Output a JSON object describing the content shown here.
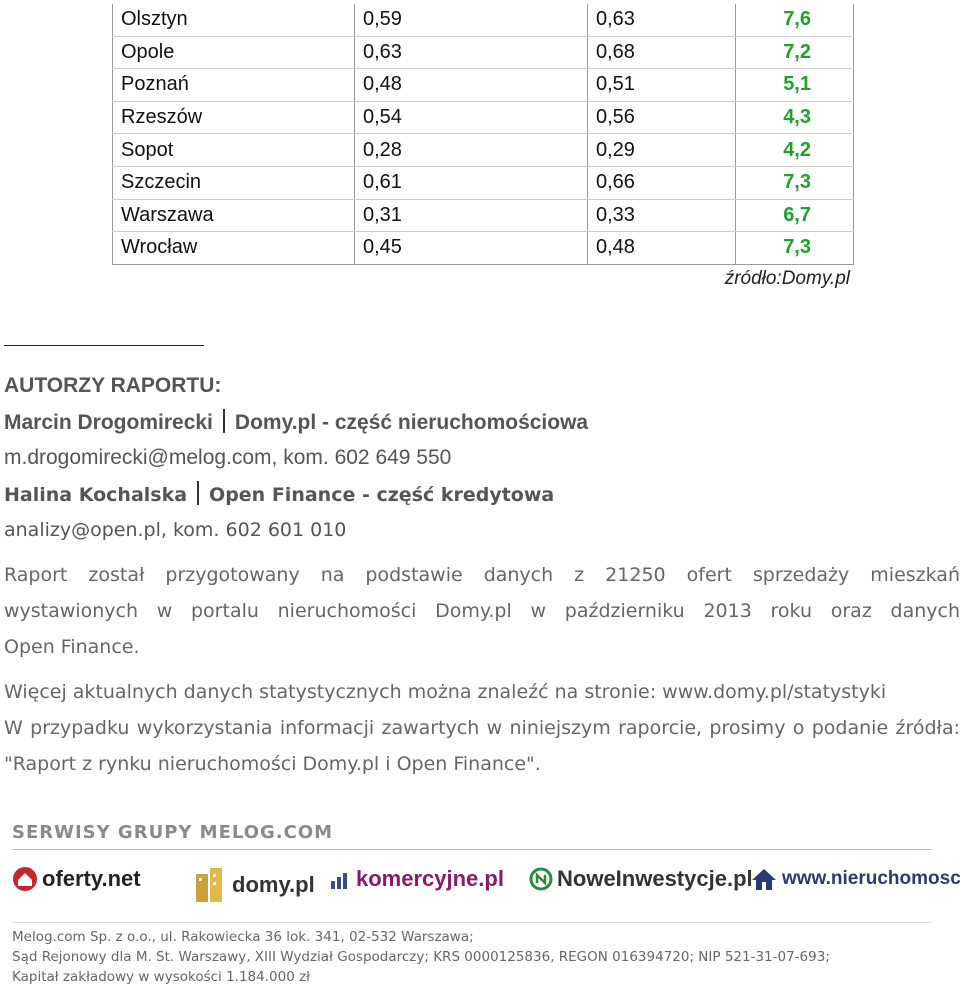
{
  "table": {
    "rows": [
      {
        "city": "Olsztyn",
        "v1": "0,59",
        "v2": "0,63",
        "v3": "7,6"
      },
      {
        "city": "Opole",
        "v1": "0,63",
        "v2": "0,68",
        "v3": "7,2"
      },
      {
        "city": "Poznań",
        "v1": "0,48",
        "v2": "0,51",
        "v3": "5,1"
      },
      {
        "city": "Rzeszów",
        "v1": "0,54",
        "v2": "0,56",
        "v3": "4,3"
      },
      {
        "city": "Sopot",
        "v1": "0,28",
        "v2": "0,29",
        "v3": "4,2"
      },
      {
        "city": "Szczecin",
        "v1": "0,61",
        "v2": "0,66",
        "v3": "7,3"
      },
      {
        "city": "Warszawa",
        "v1": "0,31",
        "v2": "0,33",
        "v3": "6,7"
      },
      {
        "city": "Wrocław",
        "v1": "0,45",
        "v2": "0,48",
        "v3": "7,3"
      }
    ],
    "source": "źródło:Domy.pl",
    "highlight_color": "#1fa12c"
  },
  "authors": {
    "heading": "AUTORZY RAPORTU:",
    "a1_name": "Marcin Drogomirecki",
    "a1_org": "Domy.pl - część nieruchomościowa",
    "a1_contact": "m.drogomirecki@melog.com, kom. 602 649 550",
    "a2_name": "Halina Kochalska",
    "a2_org": "Open Finance - część kredytowa",
    "a2_contact": "analizy@open.pl, kom. 602 601 010"
  },
  "body": {
    "p1_l1": "Raport został przygotowany na podstawie danych z 21250 ofert sprzedaży mieszkań",
    "p1_l2": "wystawionych w portalu nieruchomości Domy.pl w październiku 2013 roku oraz danych",
    "p1_l3": "Open Finance.",
    "p2": "Więcej aktualnych danych statystycznych można znaleźć na stronie: www.domy.pl/statystyki",
    "p3": "W przypadku wykorzystania informacji zawartych w niniejszym raporcie, prosimy o podanie źródła: \"Raport z rynku nieruchomości Domy.pl i Open Finance\"."
  },
  "footer": {
    "title": "SERWISY GRUPY MELOG.COM",
    "logos": {
      "oferty": "oferty.net",
      "domy": "domy.pl",
      "komercyjne": "komercyjne.pl",
      "nowe": "NoweInwestycje.pl",
      "nieruchomosci": "www.nieruchomosci.pl"
    },
    "legal_l1": "Melog.com Sp. z o.o., ul. Rakowiecka 36 lok. 341, 02-532 Warszawa;",
    "legal_l2": "Sąd Rejonowy dla M. St. Warszawy, XIII Wydział Gospodarczy; KRS 0000125836, REGON 016394720; NIP 521-31-07-693;",
    "legal_l3": "Kapitał zakładowy w wysokości 1.184.000 zł"
  }
}
